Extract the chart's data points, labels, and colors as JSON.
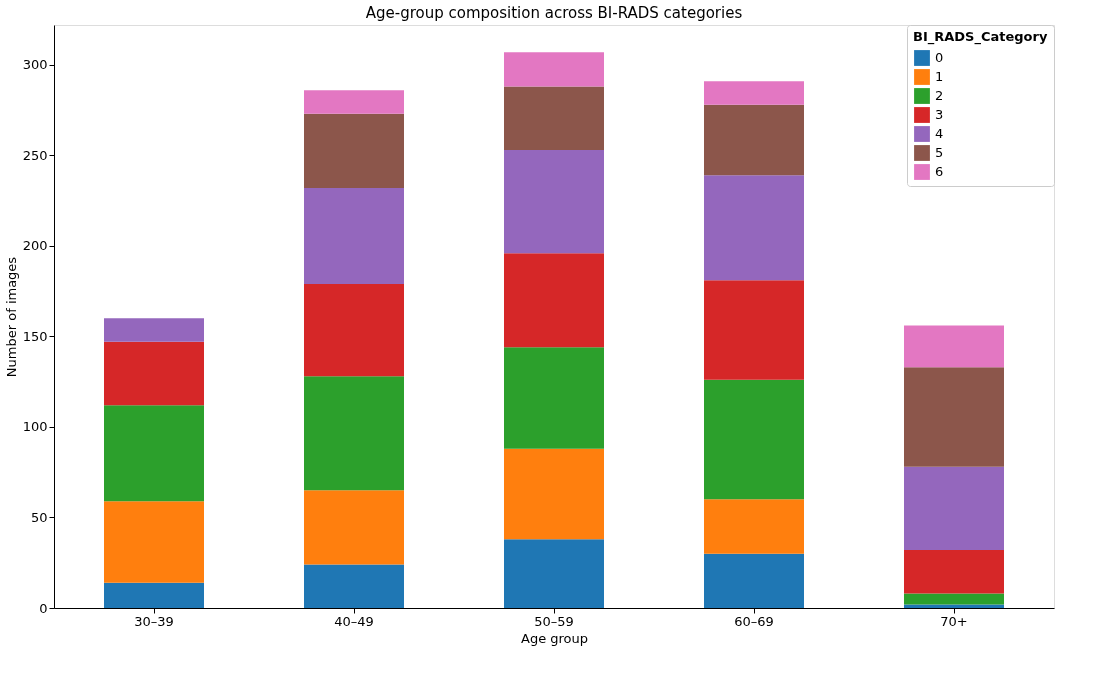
{
  "chart_data": {
    "type": "bar",
    "title": "Age-group composition across BI-RADS categories",
    "xlabel": "Age group",
    "ylabel": "Number of images",
    "legend_title": "BI_RADS_Category",
    "legend": "top right",
    "stacked": true,
    "grid": false,
    "categories": [
      "30–39",
      "40–49",
      "50–59",
      "60–69",
      "70+"
    ],
    "ylim": [
      0,
      322
    ],
    "yticks": [
      0,
      50,
      100,
      150,
      200,
      250,
      300
    ],
    "series": [
      {
        "name": "0",
        "color": "#1f77b4",
        "values": [
          14,
          24,
          38,
          30,
          2
        ]
      },
      {
        "name": "1",
        "color": "#ff7f0e",
        "values": [
          45,
          41,
          50,
          30,
          0
        ]
      },
      {
        "name": "2",
        "color": "#2ca02c",
        "values": [
          53,
          63,
          56,
          66,
          6
        ]
      },
      {
        "name": "3",
        "color": "#d62728",
        "values": [
          35,
          51,
          52,
          55,
          24
        ]
      },
      {
        "name": "4",
        "color": "#9467bd",
        "values": [
          13,
          53,
          57,
          58,
          46
        ]
      },
      {
        "name": "5",
        "color": "#8c564b",
        "values": [
          0,
          41,
          35,
          39,
          55
        ]
      },
      {
        "name": "6",
        "color": "#e377c2",
        "values": [
          0,
          13,
          19,
          13,
          23
        ]
      }
    ]
  }
}
